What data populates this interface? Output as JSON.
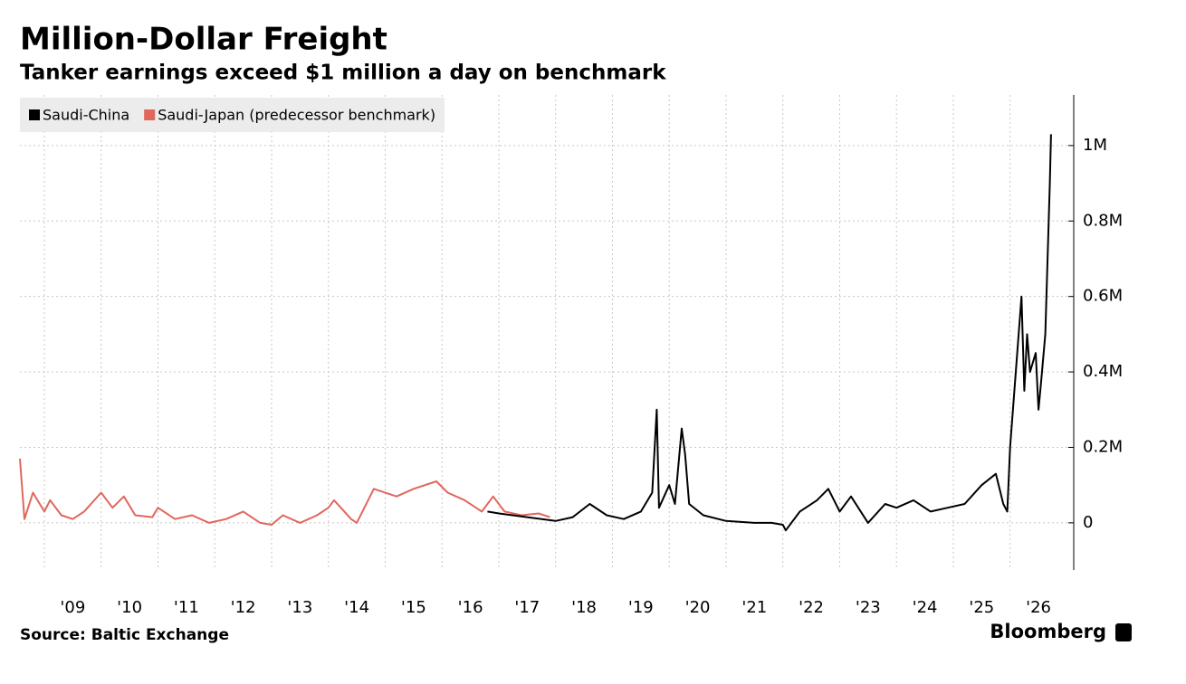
{
  "chart_data": {
    "type": "line",
    "title": "Million-Dollar Freight",
    "subtitle": "Tanker earnings exceed $1 million a day on benchmark",
    "source": "Source: Baltic Exchange",
    "brand": "Bloomberg",
    "grid": true,
    "legend": "top-left",
    "xlim": [
      2008.57,
      2027.12
    ],
    "xticks": [
      {
        "value": 2009,
        "label": "'09"
      },
      {
        "value": 2010,
        "label": "'10"
      },
      {
        "value": 2011,
        "label": "'11"
      },
      {
        "value": 2012,
        "label": "'12"
      },
      {
        "value": 2013,
        "label": "'13"
      },
      {
        "value": 2014,
        "label": "'14"
      },
      {
        "value": 2015,
        "label": "'15"
      },
      {
        "value": 2016,
        "label": "'16"
      },
      {
        "value": 2017,
        "label": "'17"
      },
      {
        "value": 2018,
        "label": "'18"
      },
      {
        "value": 2019,
        "label": "'19"
      },
      {
        "value": 2020,
        "label": "'20"
      },
      {
        "value": 2021,
        "label": "'21"
      },
      {
        "value": 2022,
        "label": "'22"
      },
      {
        "value": 2023,
        "label": "'23"
      },
      {
        "value": 2024,
        "label": "'24"
      },
      {
        "value": 2025,
        "label": "'25"
      },
      {
        "value": 2026,
        "label": "'26"
      }
    ],
    "ylim": [
      -125000,
      1134000
    ],
    "yticks": [
      0,
      {
        "value": 200000,
        "label": "0.2M"
      },
      {
        "value": 400000,
        "label": "0.4M"
      },
      {
        "value": 600000,
        "label": "0.6M"
      },
      {
        "value": 800000,
        "label": "0.8M"
      },
      {
        "value": 1000000,
        "label": "1M"
      }
    ],
    "series": [
      {
        "name": "Saudi-China",
        "color": "#000000",
        "x": [
          2016.8,
          2017.0,
          2017.5,
          2018.0,
          2018.3,
          2018.6,
          2018.9,
          2019.2,
          2019.5,
          2019.7,
          2019.78,
          2019.82,
          2020.0,
          2020.1,
          2020.22,
          2020.28,
          2020.35,
          2020.6,
          2021.0,
          2021.5,
          2021.8,
          2022.0,
          2022.05,
          2022.3,
          2022.6,
          2022.8,
          2023.0,
          2023.2,
          2023.5,
          2023.8,
          2024.0,
          2024.3,
          2024.6,
          2024.9,
          2025.2,
          2025.5,
          2025.75,
          2025.88,
          2025.95,
          2026.0,
          2026.1,
          2026.2,
          2026.25,
          2026.3,
          2026.35,
          2026.45,
          2026.5,
          2026.55,
          2026.62,
          2026.66,
          2026.7,
          2026.72
        ],
        "values": [
          30000,
          25000,
          15000,
          5000,
          15000,
          50000,
          20000,
          10000,
          30000,
          80000,
          300000,
          40000,
          100000,
          50000,
          250000,
          180000,
          50000,
          20000,
          5000,
          0,
          0,
          -5000,
          -20000,
          30000,
          60000,
          90000,
          30000,
          70000,
          0,
          50000,
          40000,
          60000,
          30000,
          40000,
          50000,
          100000,
          130000,
          50000,
          30000,
          200000,
          400000,
          600000,
          350000,
          500000,
          400000,
          450000,
          300000,
          380000,
          500000,
          700000,
          900000,
          1030000
        ]
      },
      {
        "name": "Saudi-Japan (predecessor benchmark)",
        "color": "#e0675c",
        "x": [
          2008.57,
          2008.65,
          2008.8,
          2009.0,
          2009.1,
          2009.3,
          2009.5,
          2009.7,
          2010.0,
          2010.2,
          2010.4,
          2010.6,
          2010.9,
          2011.0,
          2011.3,
          2011.6,
          2011.9,
          2012.2,
          2012.5,
          2012.8,
          2013.0,
          2013.2,
          2013.5,
          2013.8,
          2014.0,
          2014.1,
          2014.4,
          2014.5,
          2014.8,
          2015.2,
          2015.5,
          2015.9,
          2016.1,
          2016.4,
          2016.7,
          2016.9,
          2017.1,
          2017.4,
          2017.7,
          2017.9
        ],
        "values": [
          170000,
          10000,
          80000,
          30000,
          60000,
          20000,
          10000,
          30000,
          80000,
          40000,
          70000,
          20000,
          15000,
          40000,
          10000,
          20000,
          0,
          10000,
          30000,
          0,
          -5000,
          20000,
          0,
          20000,
          40000,
          60000,
          10000,
          0,
          90000,
          70000,
          90000,
          110000,
          80000,
          60000,
          30000,
          70000,
          30000,
          20000,
          25000,
          15000
        ]
      }
    ]
  }
}
